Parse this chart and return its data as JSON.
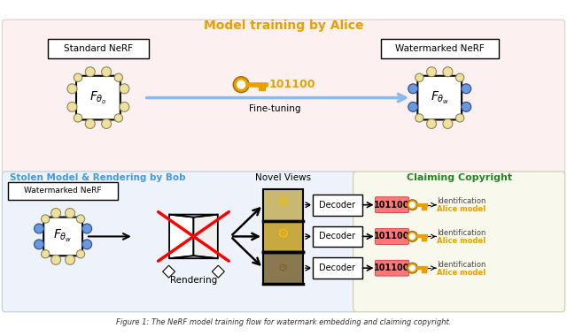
{
  "top_label": "Model training by Alice",
  "top_label_color": "#e8a000",
  "bottom_left_label": "Stolen Model & Rendering by Bob",
  "bottom_left_color": "#4499dd",
  "bottom_right_label": "Claiming Copyright",
  "bottom_right_color": "#228822",
  "novel_views_label": "Novel Views",
  "fine_tuning_label": "Fine-tuning",
  "rendering_label": "Rendering",
  "watermark_code": "101100",
  "identification_text": "Identification",
  "alice_model_text": "Alice model",
  "alice_model_color": "#e8a000",
  "standard_nerf_label": "Standard NeRF",
  "watermarked_nerf_label": "Watermarked NeRF",
  "decoder_label": "Decoder",
  "node_beige": "#f0e0a0",
  "node_blue": "#6699dd",
  "bg_top": "#fdf0f0",
  "bg_bottom_left": "#eef3fb",
  "bg_bottom_right": "#f8f8ec",
  "arrow_blue": "#88bbee",
  "code_bg": "#ff7777",
  "key_color": "#e8a000"
}
